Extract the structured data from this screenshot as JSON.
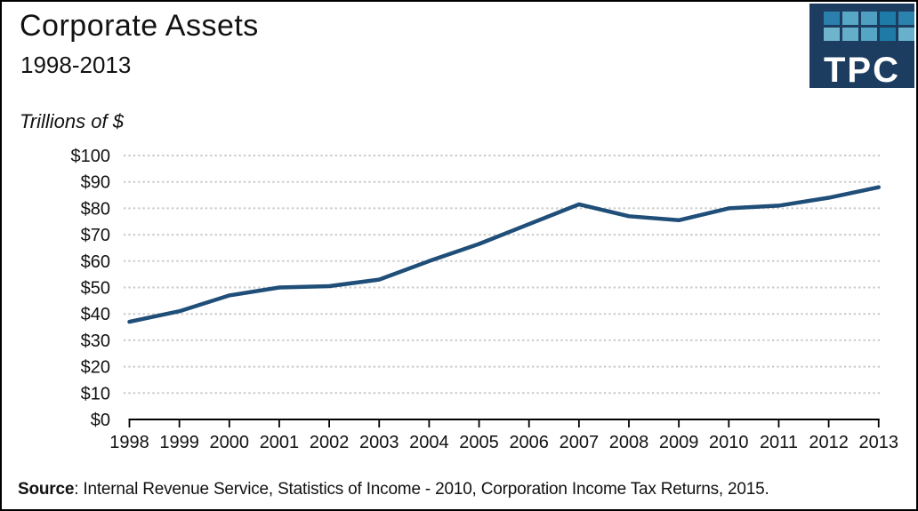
{
  "page": {
    "title": "Corporate Assets",
    "subtitle": "1998-2013",
    "units_label": "Trillions of $",
    "source_label": "Source",
    "source_text": ": Internal Revenue Service, Statistics of Income - 2010, Corporation Income Tax Returns, 2015."
  },
  "logo": {
    "text": "TPC",
    "background": "#1c3c60",
    "square_colors": [
      [
        "#2b7fad",
        "#58a7c6",
        "#4e9fc1",
        "#1e7ba8",
        "#2b82ad"
      ],
      [
        "#6fb4cd",
        "#65aeca",
        "#55a5c4",
        "#1f7aa6",
        "#68b0cb"
      ]
    ]
  },
  "chart_data": {
    "type": "line",
    "title": "Corporate Assets",
    "subtitle": "1998-2013",
    "ylabel": "Trillions of $",
    "xlabel": "",
    "x": [
      1998,
      1999,
      2000,
      2001,
      2002,
      2003,
      2004,
      2005,
      2006,
      2007,
      2008,
      2009,
      2010,
      2011,
      2012,
      2013
    ],
    "series": [
      {
        "name": "Corporate assets (trillions of dollars)",
        "values": [
          37,
          41,
          47,
          50,
          50.5,
          53,
          60,
          66.5,
          74,
          81.5,
          77,
          75.5,
          80,
          81,
          84,
          88
        ]
      }
    ],
    "ylim": [
      0,
      100
    ],
    "ytick_interval": 10,
    "ytick_prefix": "$",
    "grid": "horizontal-dotted",
    "legend": "none",
    "line_color": "#1f4e79"
  }
}
